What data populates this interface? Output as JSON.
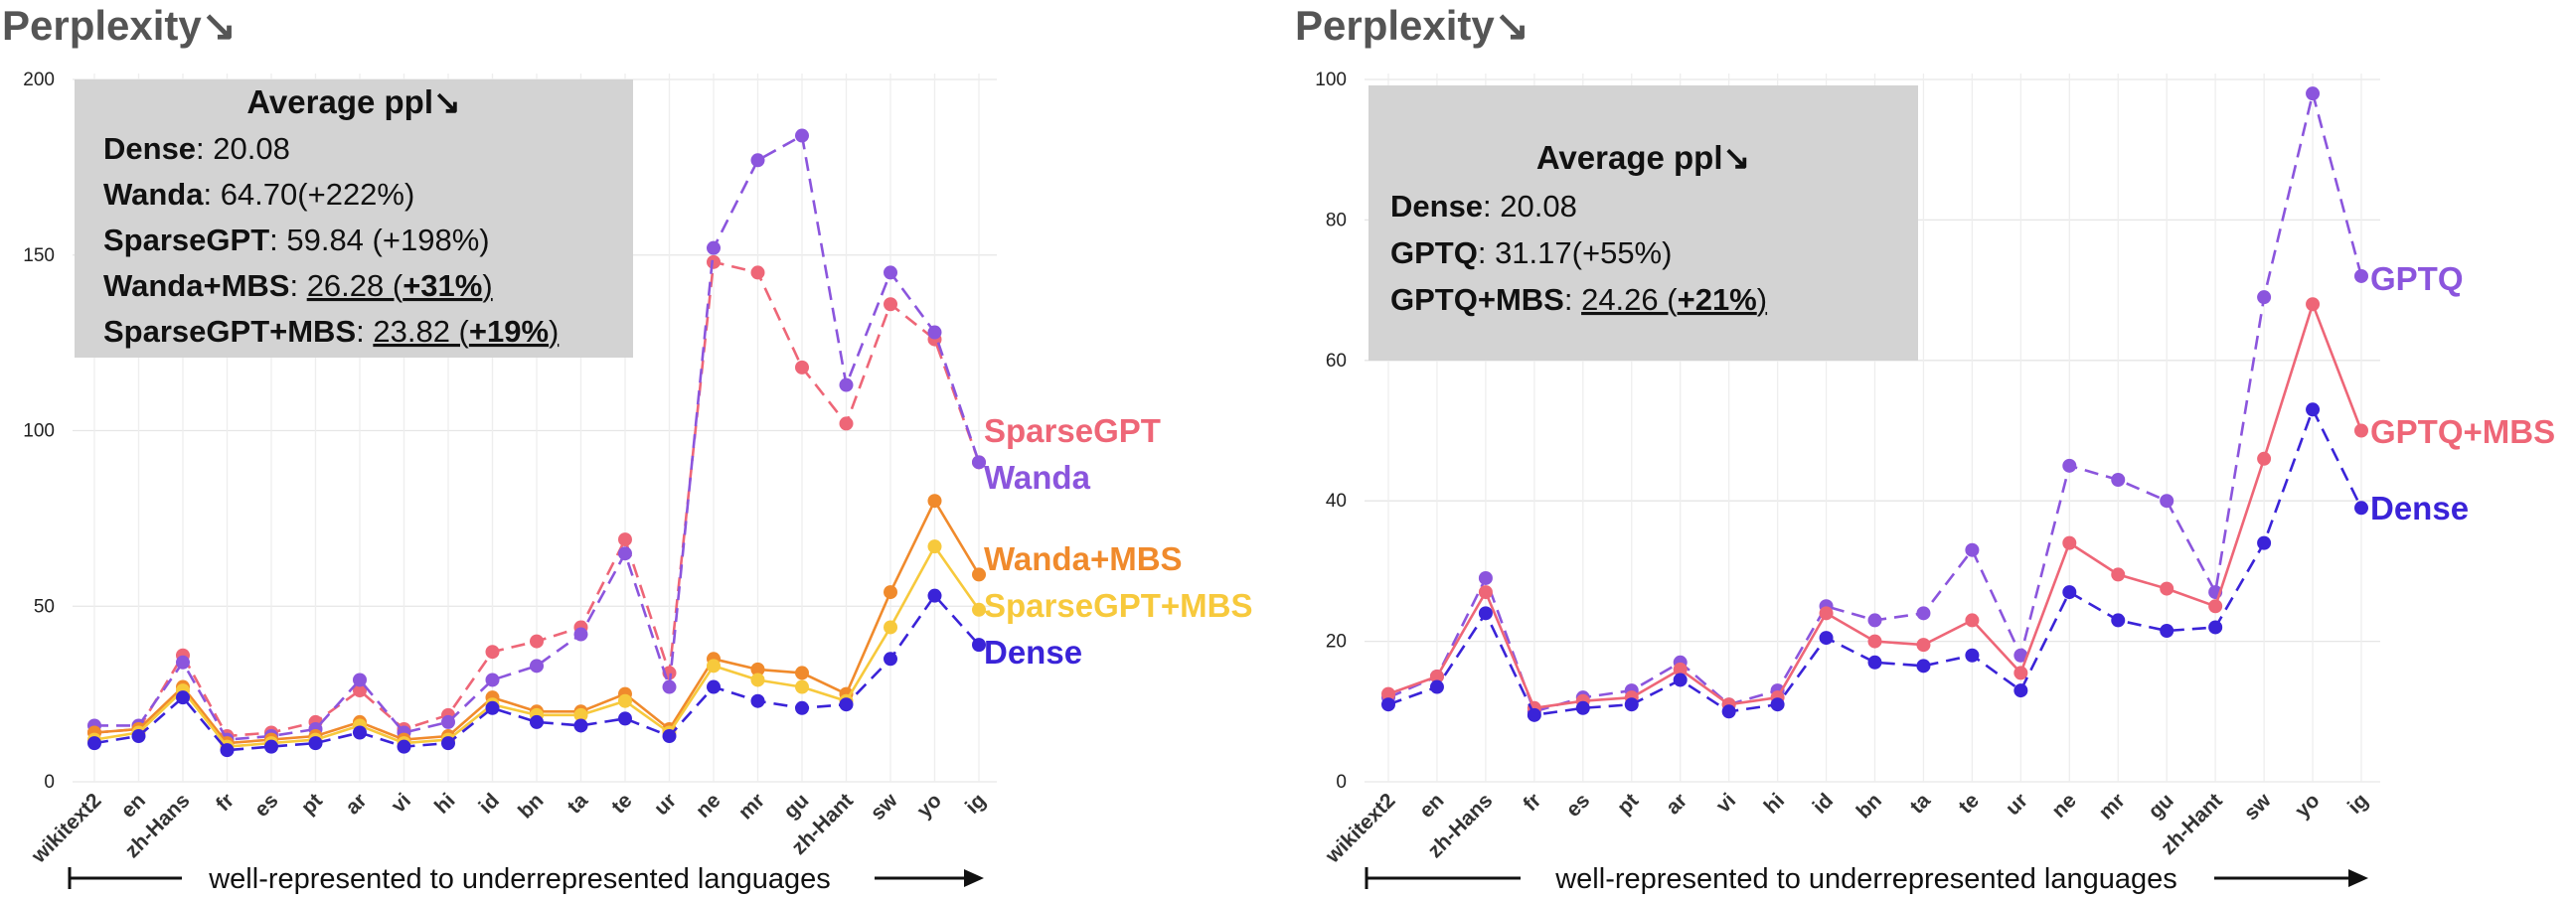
{
  "chart_data": [
    {
      "type": "line",
      "title": "Perplexity↘",
      "xlabel": "well-represented to underrepresented languages",
      "ylabel": "",
      "ylim": [
        0,
        200
      ],
      "yticks": [
        "0",
        "50",
        "100",
        "150",
        "200"
      ],
      "categories": [
        "wikitext2",
        "en",
        "zh-Hans",
        "fr",
        "es",
        "pt",
        "ar",
        "vi",
        "hi",
        "id",
        "bn",
        "ta",
        "te",
        "ur",
        "ne",
        "mr",
        "gu",
        "zh-Hant",
        "sw",
        "yo",
        "ig"
      ],
      "series": [
        {
          "name": "SparseGPT",
          "color": "#ee6677",
          "dashed": true,
          "values": [
            14,
            15,
            36,
            13,
            14,
            17,
            26,
            15,
            19,
            37,
            40,
            44,
            69,
            31,
            148,
            145,
            118,
            102,
            136,
            126,
            91
          ]
        },
        {
          "name": "Wanda",
          "color": "#8b55dd",
          "dashed": true,
          "values": [
            16,
            16,
            34,
            12,
            13,
            15,
            29,
            14,
            17,
            29,
            33,
            42,
            65,
            27,
            152,
            177,
            184,
            113,
            145,
            128,
            91
          ]
        },
        {
          "name": "Wanda+MBS",
          "color": "#f08a2c",
          "dashed": false,
          "values": [
            14,
            15,
            27,
            11,
            12,
            13,
            17,
            12,
            13,
            24,
            20,
            20,
            25,
            15,
            35,
            32,
            31,
            25,
            54,
            80,
            59
          ]
        },
        {
          "name": "SparseGPT+MBS",
          "color": "#f7c93c",
          "dashed": false,
          "values": [
            12,
            14,
            26,
            10,
            11,
            12,
            16,
            11,
            12,
            22,
            19,
            19,
            23,
            14,
            33,
            29,
            27,
            23,
            44,
            67,
            49
          ]
        },
        {
          "name": "Dense",
          "color": "#3a23d8",
          "dashed": true,
          "values": [
            11,
            13,
            24,
            9,
            10,
            11,
            14,
            10,
            11,
            21,
            17,
            16,
            18,
            13,
            27,
            23,
            21,
            22,
            35,
            53,
            39
          ]
        }
      ],
      "summary": {
        "heading": "Average ppl↘",
        "lines": [
          {
            "name": "Dense",
            "value": ": 20.08",
            "ul": "",
            "bold": "",
            "close": ""
          },
          {
            "name": "Wanda",
            "value": ": 64.70(+222%)",
            "ul": "",
            "bold": "",
            "close": ""
          },
          {
            "name": "SparseGPT",
            "value": ": 59.84 (+198%)",
            "ul": "",
            "bold": "",
            "close": ""
          },
          {
            "name": "Wanda+MBS",
            "value": ": ",
            "ul": "26.28 (",
            "bold": "+31%",
            "close": ")"
          },
          {
            "name": "SparseGPT+MBS",
            "value": ": ",
            "ul": "23.82  (",
            "bold": "+19%",
            "close": ")"
          }
        ]
      }
    },
    {
      "type": "line",
      "title": "Perplexity↘",
      "xlabel": "well-represented to underrepresented languages",
      "ylabel": "",
      "ylim": [
        0,
        100
      ],
      "yticks": [
        "0",
        "20",
        "40",
        "60",
        "80",
        "100"
      ],
      "categories": [
        "wikitext2",
        "en",
        "zh-Hans",
        "fr",
        "es",
        "pt",
        "ar",
        "vi",
        "hi",
        "id",
        "bn",
        "ta",
        "te",
        "ur",
        "ne",
        "mr",
        "gu",
        "zh-Hant",
        "sw",
        "yo",
        "ig"
      ],
      "series": [
        {
          "name": "GPTQ",
          "color": "#8b55dd",
          "dashed": true,
          "values": [
            12,
            15,
            29,
            10,
            12,
            13,
            17,
            11,
            13,
            25,
            23,
            24,
            33,
            18,
            45,
            43,
            40,
            27,
            69,
            98,
            72
          ]
        },
        {
          "name": "GPTQ+MBS",
          "color": "#ee6677",
          "dashed": false,
          "values": [
            12.5,
            15,
            27,
            10.5,
            11.5,
            12,
            16,
            11,
            12,
            24,
            20,
            19.5,
            23,
            15.5,
            34,
            29.5,
            27.5,
            25,
            46,
            68,
            50
          ]
        },
        {
          "name": "Dense",
          "color": "#3a23d8",
          "dashed": true,
          "values": [
            11,
            13.5,
            24,
            9.5,
            10.5,
            11,
            14.5,
            10,
            11,
            20.5,
            17,
            16.5,
            18,
            13,
            27,
            23,
            21.5,
            22,
            34,
            53,
            39
          ]
        }
      ],
      "summary": {
        "heading": "Average ppl↘",
        "lines": [
          {
            "name": "Dense",
            "value": ": 20.08",
            "ul": "",
            "bold": "",
            "close": ""
          },
          {
            "name": "GPTQ",
            "value": ": 31.17(+55%)",
            "ul": "",
            "bold": "",
            "close": ""
          },
          {
            "name": "GPTQ+MBS",
            "value": ": ",
            "ul": "24.26 (",
            "bold": "+21%",
            "close": ")"
          }
        ]
      }
    }
  ]
}
